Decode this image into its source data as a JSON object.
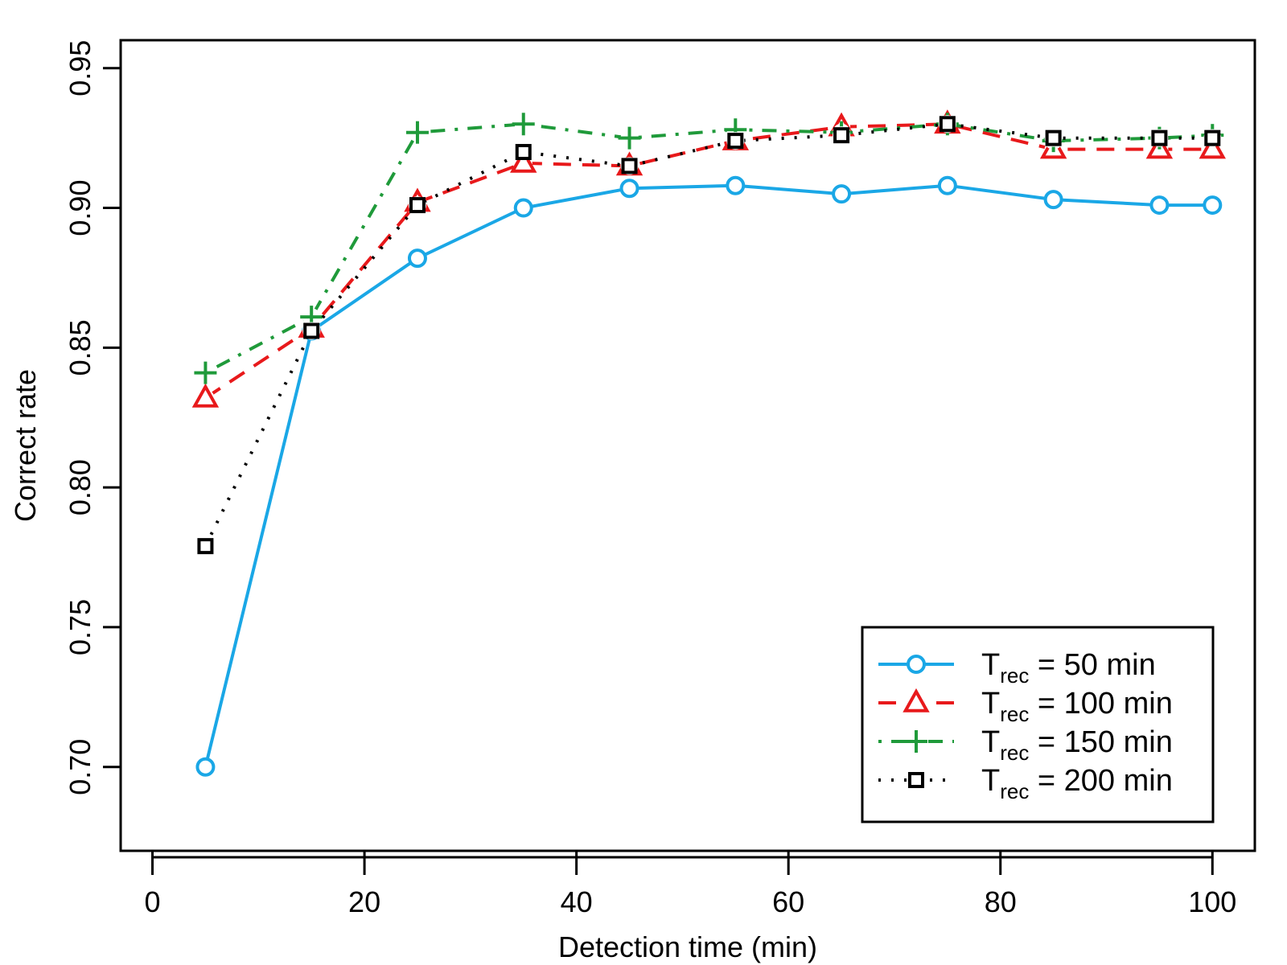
{
  "chart_data": {
    "type": "line",
    "title": "",
    "xlabel": "Detection time (min)",
    "ylabel": "Correct rate",
    "xlim": [
      -3,
      104
    ],
    "ylim": [
      0.67,
      0.96
    ],
    "x_ticks": [
      0,
      20,
      40,
      60,
      80,
      100
    ],
    "x_tick_labels": [
      "0",
      "20",
      "40",
      "60",
      "80",
      "100"
    ],
    "y_ticks": [
      0.7,
      0.75,
      0.8,
      0.85,
      0.9,
      0.95
    ],
    "y_tick_labels": [
      "0.70",
      "0.75",
      "0.80",
      "0.85",
      "0.90",
      "0.95"
    ],
    "grid": false,
    "legend_position": "bottom-right",
    "x": [
      5,
      15,
      25,
      35,
      45,
      55,
      65,
      75,
      85,
      95,
      100
    ],
    "series": [
      {
        "name": "Trec = 50 min",
        "legend_main": "T",
        "legend_sub": "rec",
        "legend_rest": " = 50 min",
        "color": "#1aa7e6",
        "dash": "solid",
        "marker": "circle",
        "values": [
          0.7,
          0.856,
          0.882,
          0.9,
          0.907,
          0.908,
          0.905,
          0.908,
          0.903,
          0.901,
          0.901
        ]
      },
      {
        "name": "Trec = 100 min",
        "legend_main": "T",
        "legend_sub": "rec",
        "legend_rest": " = 100 min",
        "color": "#e8191b",
        "dash": "dashed",
        "marker": "triangle",
        "values": [
          0.832,
          0.857,
          0.902,
          0.916,
          0.915,
          0.924,
          0.929,
          0.93,
          0.921,
          0.921,
          0.921
        ]
      },
      {
        "name": "Trec = 150 min",
        "legend_main": "T",
        "legend_sub": "rec",
        "legend_rest": " = 150 min",
        "color": "#1f9a3a",
        "dash": "dotdash",
        "marker": "plus",
        "values": [
          0.841,
          0.861,
          0.927,
          0.93,
          0.925,
          0.928,
          0.927,
          0.93,
          0.924,
          0.925,
          0.926
        ]
      },
      {
        "name": "Trec = 200 min",
        "legend_main": "T",
        "legend_sub": "rec",
        "legend_rest": " = 200 min",
        "color": "#000000",
        "dash": "dotted",
        "marker": "square",
        "values": [
          0.779,
          0.856,
          0.901,
          0.92,
          0.915,
          0.924,
          0.926,
          0.93,
          0.925,
          0.925,
          0.925
        ]
      }
    ]
  }
}
